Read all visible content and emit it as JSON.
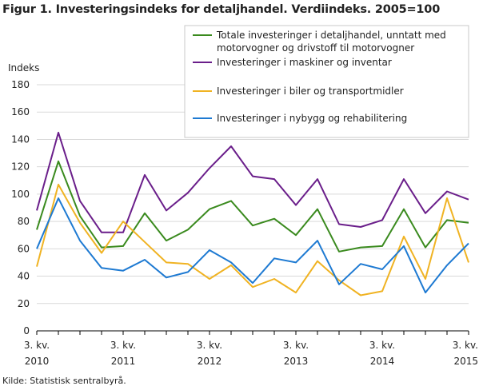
{
  "title": "Figur 1. Investeringsindeks for detaljhandel. Verdiindeks. 2005=100",
  "source": "Kilde: Statistisk sentralbyrå.",
  "chart_data": {
    "type": "line",
    "ylabel": "Indeks",
    "ylim": [
      0,
      180
    ],
    "yticks": [
      0,
      20,
      40,
      60,
      80,
      100,
      120,
      140,
      160,
      180
    ],
    "xticks": [
      {
        "index": 0,
        "line1": "3. kv.",
        "line2": "2010"
      },
      {
        "index": 4,
        "line1": "3. kv.",
        "line2": "2011"
      },
      {
        "index": 8,
        "line1": "3. kv.",
        "line2": "2012"
      },
      {
        "index": 12,
        "line1": "3. kv.",
        "line2": "2013"
      },
      {
        "index": 16,
        "line1": "3. kv.",
        "line2": "2014"
      },
      {
        "index": 20,
        "line1": "3. kv.",
        "line2": "2015"
      }
    ],
    "legend_position": "top-right",
    "series": [
      {
        "name": "Totale investeringer i detaljhandel, unntatt med motorvogner og drivstoff til motorvogner",
        "color": "#3a8a1e",
        "values": [
          74,
          124,
          84,
          61,
          62,
          86,
          66,
          74,
          89,
          95,
          77,
          82,
          70,
          89,
          58,
          61,
          62,
          89,
          61,
          81,
          79
        ]
      },
      {
        "name": "Investeringer i maskiner og inventar",
        "color": "#6a1e8a",
        "values": [
          88,
          145,
          95,
          72,
          72,
          114,
          88,
          101,
          119,
          135,
          113,
          111,
          92,
          111,
          78,
          76,
          81,
          111,
          86,
          102,
          96
        ]
      },
      {
        "name": "Investeringer i biler og transportmidler",
        "color": "#f0b323",
        "values": [
          47,
          107,
          79,
          57,
          80,
          65,
          50,
          49,
          38,
          48,
          32,
          38,
          28,
          51,
          37,
          26,
          29,
          69,
          38,
          97,
          50
        ]
      },
      {
        "name": "Investeringer i nybygg og rehabilitering",
        "color": "#1e7ad2",
        "values": [
          60,
          97,
          66,
          46,
          44,
          52,
          39,
          43,
          59,
          50,
          35,
          53,
          50,
          66,
          34,
          49,
          45,
          62,
          28,
          48,
          64
        ]
      }
    ]
  }
}
